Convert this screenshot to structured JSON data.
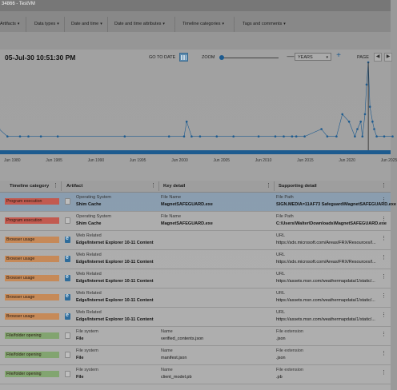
{
  "window": {
    "title": "34866 - TestVM"
  },
  "filters": [
    {
      "label": "Artifacts"
    },
    {
      "label": "Data types"
    },
    {
      "label": "Date and time"
    },
    {
      "label": "Date and time attributes"
    },
    {
      "label": "Timeline categories"
    },
    {
      "label": "Tags and comments"
    }
  ],
  "timeline": {
    "current_date": "05-Jul-30 10:51:30 PM",
    "goto_label": "GO TO DATE",
    "zoom_label": "ZOOM",
    "zoom_minus": "—",
    "zoom_plus": "+",
    "scale_value": "YEARS",
    "page_label": "PAGE",
    "prev_icon": "◀",
    "next_icon": "▶",
    "icons": [
      "calendar-icon",
      "chevron-down-icon",
      "prev-page-icon",
      "next-page-icon"
    ]
  },
  "chart_data": {
    "type": "line",
    "x_tick_labels": [
      "Jun 1980",
      "Jun 1985",
      "Jun 1990",
      "Jun 1995",
      "Jun 2000",
      "Jun 2005",
      "Jun 2010",
      "Jun 2015",
      "Jun 2020",
      "Jun 2025"
    ],
    "series_color": "#1e5e94",
    "points": [
      {
        "x": 1978.0,
        "y": 2
      },
      {
        "x": 1979.0,
        "y": 1
      },
      {
        "x": 1980.5,
        "y": 1
      },
      {
        "x": 1981.5,
        "y": 1
      },
      {
        "x": 1983.0,
        "y": 1
      },
      {
        "x": 1985.0,
        "y": 1
      },
      {
        "x": 1993.0,
        "y": 1
      },
      {
        "x": 1998.3,
        "y": 1
      },
      {
        "x": 2000.1,
        "y": 1
      },
      {
        "x": 2000.4,
        "y": 3
      },
      {
        "x": 2001.0,
        "y": 1
      },
      {
        "x": 2002.0,
        "y": 1
      },
      {
        "x": 2004.0,
        "y": 1
      },
      {
        "x": 2006.0,
        "y": 1
      },
      {
        "x": 2009.0,
        "y": 1
      },
      {
        "x": 2011.0,
        "y": 1
      },
      {
        "x": 2012.0,
        "y": 1
      },
      {
        "x": 2013.0,
        "y": 1
      },
      {
        "x": 2013.5,
        "y": 1
      },
      {
        "x": 2014.5,
        "y": 1
      },
      {
        "x": 2016.5,
        "y": 2
      },
      {
        "x": 2017.2,
        "y": 1
      },
      {
        "x": 2018.3,
        "y": 1
      },
      {
        "x": 2019.0,
        "y": 4
      },
      {
        "x": 2019.8,
        "y": 3
      },
      {
        "x": 2020.5,
        "y": 1
      },
      {
        "x": 2020.8,
        "y": 2
      },
      {
        "x": 2021.2,
        "y": 3
      },
      {
        "x": 2021.4,
        "y": 1
      },
      {
        "x": 2021.7,
        "y": 4
      },
      {
        "x": 2021.9,
        "y": 8
      },
      {
        "x": 2022.1,
        "y": 11
      },
      {
        "x": 2022.3,
        "y": 5
      },
      {
        "x": 2022.6,
        "y": 3
      },
      {
        "x": 2022.8,
        "y": 2
      },
      {
        "x": 2023.1,
        "y": 1
      },
      {
        "x": 2024.0,
        "y": 1
      },
      {
        "x": 2025.0,
        "y": 1
      }
    ]
  },
  "table": {
    "columns": [
      "Timeline category",
      "Artifact",
      "Key detail",
      "Supporting detail"
    ],
    "menu_icon": "⋮",
    "more_icon": "⋮",
    "rows": [
      {
        "category": "Program execution",
        "cat_color": "red",
        "icon": "doc",
        "a1": "Operating System",
        "a2": "Shim Cache",
        "k1": "File Name",
        "k2": "MagnetSAFEGUARD.exe",
        "s1": "File Path",
        "s2": "SIGN.MEDIA=11AF73 Safeguard\\MagnetSAFEGUARD.exe",
        "selected": true
      },
      {
        "category": "Program execution",
        "cat_color": "red",
        "icon": "doc",
        "a1": "Operating System",
        "a2": "Shim Cache",
        "k1": "File Name",
        "k2": "MagnetSAFEGUARD.exe",
        "s1": "File Path",
        "s2": "C:\\Users\\Walter\\Downloads\\MagnetSAFEGUARD.exe",
        "selected": false
      },
      {
        "category": "Browser usage",
        "cat_color": "orange",
        "icon": "edge",
        "a1": "Web Related",
        "a2": "Edge/Internet Explorer 10-11 Content",
        "k1": "",
        "k2": "",
        "s1": "URL",
        "s2": "https://sdx.microsoft.com/Areas/FRX/Resources/I...",
        "selected": false
      },
      {
        "category": "Browser usage",
        "cat_color": "orange",
        "icon": "edge",
        "a1": "Web Related",
        "a2": "Edge/Internet Explorer 10-11 Content",
        "k1": "",
        "k2": "",
        "s1": "URL",
        "s2": "https://sdx.microsoft.com/Areas/FRX/Resources/I...",
        "selected": false
      },
      {
        "category": "Browser usage",
        "cat_color": "orange",
        "icon": "edge",
        "a1": "Web Related",
        "a2": "Edge/Internet Explorer 10-11 Content",
        "k1": "",
        "k2": "",
        "s1": "URL",
        "s2": "https://assets.msn.com/weathermapdata/1/static/...",
        "selected": false
      },
      {
        "category": "Browser usage",
        "cat_color": "orange",
        "icon": "edge",
        "a1": "Web Related",
        "a2": "Edge/Internet Explorer 10-11 Content",
        "k1": "",
        "k2": "",
        "s1": "URL",
        "s2": "https://assets.msn.com/weathermapdata/1/static/...",
        "selected": false
      },
      {
        "category": "Browser usage",
        "cat_color": "orange",
        "icon": "edge",
        "a1": "Web Related",
        "a2": "Edge/Internet Explorer 10-11 Content",
        "k1": "",
        "k2": "",
        "s1": "URL",
        "s2": "https://assets.msn.com/weathermapdata/1/static/...",
        "selected": false
      },
      {
        "category": "File/folder opening",
        "cat_color": "green",
        "icon": "doc",
        "a1": "File system",
        "a2": "File",
        "k1": "Name",
        "k2": "verified_contents.json",
        "s1": "File extension",
        "s2": ".json",
        "selected": false
      },
      {
        "category": "File/folder opening",
        "cat_color": "green",
        "icon": "doc",
        "a1": "File system",
        "a2": "File",
        "k1": "Name",
        "k2": "manifest.json",
        "s1": "File extension",
        "s2": ".json",
        "selected": false
      },
      {
        "category": "File/folder opening",
        "cat_color": "green",
        "icon": "doc",
        "a1": "File system",
        "a2": "File",
        "k1": "Name",
        "k2": "client_model.pb",
        "s1": "File extension",
        "s2": ".pb",
        "selected": false
      }
    ]
  }
}
